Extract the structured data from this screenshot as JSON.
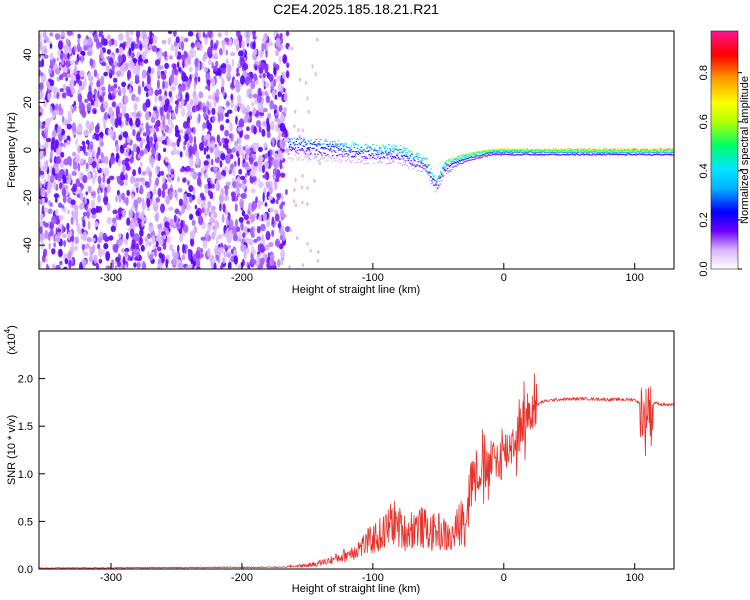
{
  "title": "C2E4.2025.185.18.21.R21",
  "chart_data": [
    {
      "type": "heatmap",
      "xlabel": "Height of straight line (km)",
      "ylabel": "Frequency (Hz)",
      "xlim": [
        -355,
        130
      ],
      "ylim": [
        -50,
        50
      ],
      "x_ticks": [
        -300,
        -200,
        -100,
        0,
        100
      ],
      "x_tick_labels": [
        "-300",
        "-200",
        "-100",
        "0",
        "100"
      ],
      "y_ticks": [
        -40,
        -20,
        0,
        20,
        40
      ],
      "y_tick_labels": [
        "-40",
        "-20",
        "0",
        "20",
        "40"
      ],
      "colorbar": {
        "label": "Normalized spectral amplitude",
        "range": [
          0,
          0.97
        ],
        "ticks": [
          0,
          0.2,
          0.4,
          0.6,
          0.8
        ],
        "tick_labels": [
          "0.0",
          "0.2",
          "0.4",
          "0.6",
          "0.8"
        ],
        "colors": [
          "#ffffff",
          "#d8b4ff",
          "#6a00ff",
          "#0000ff",
          "#00e5ff",
          "#00ff66",
          "#b4ff00",
          "#ffff00",
          "#ff9900",
          "#ff0000",
          "#ff1493"
        ]
      },
      "features": {
        "noise_region_x": [
          -355,
          -165
        ],
        "noise_amplitude_range": [
          0.05,
          0.18
        ],
        "signal_track": [
          {
            "x": -165,
            "freq": 6,
            "width": 10,
            "amp": 0.3
          },
          {
            "x": -140,
            "freq": 5,
            "width": 9,
            "amp": 0.32
          },
          {
            "x": -110,
            "freq": 3,
            "width": 8,
            "amp": 0.35
          },
          {
            "x": -80,
            "freq": 2,
            "width": 7,
            "amp": 0.4
          },
          {
            "x": -60,
            "freq": -3,
            "width": 7,
            "amp": 0.38
          },
          {
            "x": -52,
            "freq": -12,
            "width": 6,
            "amp": 0.35
          },
          {
            "x": -45,
            "freq": -4,
            "width": 5,
            "amp": 0.45
          },
          {
            "x": -30,
            "freq": -1,
            "width": 4,
            "amp": 0.55
          },
          {
            "x": -10,
            "freq": 1,
            "width": 3,
            "amp": 0.6
          },
          {
            "x": 10,
            "freq": 1,
            "width": 3,
            "amp": 0.65
          },
          {
            "x": 50,
            "freq": 1,
            "width": 3,
            "amp": 0.68
          },
          {
            "x": 90,
            "freq": 1,
            "width": 3,
            "amp": 0.7
          },
          {
            "x": 130,
            "freq": 1,
            "width": 3,
            "amp": 0.7
          }
        ]
      }
    },
    {
      "type": "line",
      "xlabel": "Height of straight line (km)",
      "ylabel": "SNR (10 * v/v)",
      "y_multiplier_label": "(x10",
      "y_multiplier_exp": "4",
      "xlim": [
        -355,
        130
      ],
      "ylim": [
        0,
        2.5
      ],
      "x_ticks": [
        -300,
        -200,
        -100,
        0,
        100
      ],
      "x_tick_labels": [
        "-300",
        "-200",
        "-100",
        "0",
        "100"
      ],
      "y_ticks": [
        0,
        0.5,
        1.0,
        1.5,
        2.0
      ],
      "y_tick_labels": [
        "0.0",
        "0.5",
        "1.0",
        "1.5",
        "2.0"
      ],
      "line_color": "#e8322b",
      "series": [
        {
          "x": [
            -355,
            -250,
            -165,
            -150,
            -140,
            -130,
            -120,
            -110,
            -100,
            -95,
            -90,
            -85,
            -80,
            -75,
            -70,
            -65,
            -60,
            -55,
            -50,
            -45,
            -40,
            -35,
            -30,
            -28,
            -25,
            -20,
            -15,
            -10,
            -5,
            0,
            5,
            10,
            15,
            20,
            25,
            30,
            40,
            60,
            80,
            100,
            105,
            108,
            110,
            112,
            115,
            120,
            130
          ],
          "y": [
            0.01,
            0.015,
            0.02,
            0.03,
            0.05,
            0.08,
            0.12,
            0.18,
            0.25,
            0.28,
            0.32,
            0.4,
            0.35,
            0.3,
            0.34,
            0.36,
            0.33,
            0.3,
            0.32,
            0.28,
            0.25,
            0.35,
            0.45,
            0.7,
            0.95,
            1.05,
            1.0,
            1.1,
            1.15,
            1.2,
            1.3,
            1.4,
            1.55,
            1.65,
            1.72,
            1.76,
            1.78,
            1.79,
            1.78,
            1.78,
            1.72,
            1.5,
            1.8,
            1.6,
            1.75,
            1.73,
            1.72
          ]
        }
      ]
    }
  ]
}
